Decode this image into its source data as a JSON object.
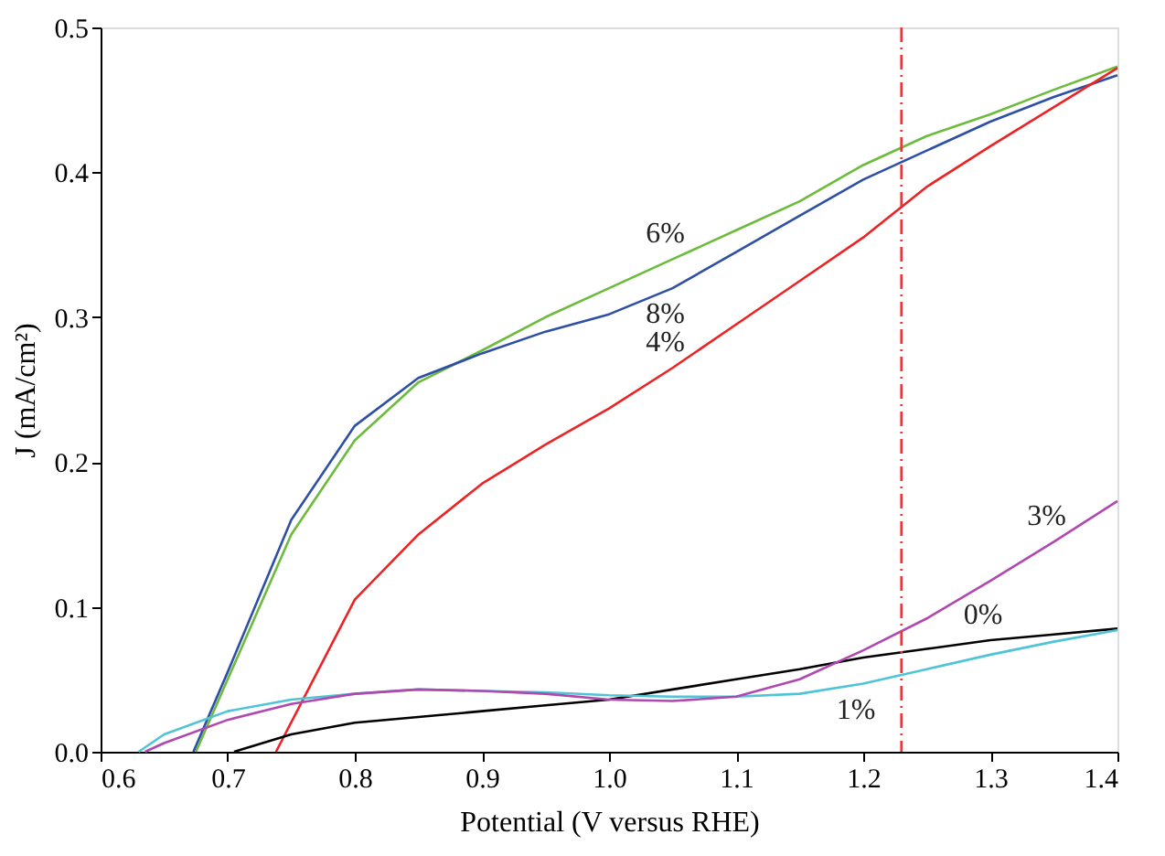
{
  "chart_data": {
    "type": "line",
    "xlabel": "Potential (V versus RHE)",
    "ylabel": "J (mA/cm²)",
    "xlim": [
      0.6,
      1.4
    ],
    "ylim": [
      0,
      0.5
    ],
    "xticks": [
      0.6,
      0.7,
      0.8,
      0.9,
      {
        "value": 1.0,
        "label": "1.0"
      },
      1.1,
      1.2,
      1.3,
      1.4
    ],
    "yticks": [
      {
        "value": 0,
        "label": "0.0"
      },
      0.1,
      0.2,
      0.3,
      0.4,
      0.5
    ],
    "grid": false,
    "legend": false,
    "marker": "none",
    "line_style": "solid",
    "series": [
      {
        "color": "#6dbb3c",
        "x": [
          0.675,
          0.7,
          0.75,
          0.8,
          0.85,
          0.9,
          0.95,
          1.0,
          1.05,
          1.1,
          1.15,
          1.2,
          1.25,
          1.3,
          1.35,
          1.4
        ],
        "values": [
          0,
          0.05,
          0.15,
          0.215,
          0.255,
          0.277,
          0.3,
          0.32,
          0.34,
          0.36,
          0.38,
          0.405,
          0.425,
          0.44,
          0.457,
          0.473
        ]
      },
      {
        "color": "#2e4fa6",
        "x": [
          0.673,
          0.7,
          0.75,
          0.8,
          0.85,
          0.9,
          0.95,
          1.0,
          1.05,
          1.1,
          1.15,
          1.2,
          1.25,
          1.3,
          1.35,
          1.4
        ],
        "values": [
          0,
          0.055,
          0.16,
          0.225,
          0.258,
          0.275,
          0.29,
          0.302,
          0.32,
          0.345,
          0.37,
          0.395,
          0.415,
          0.435,
          0.452,
          0.467
        ]
      },
      {
        "color": "#ee2222",
        "x": [
          0.738,
          0.8,
          0.85,
          0.9,
          0.95,
          1.0,
          1.05,
          1.1,
          1.15,
          1.2,
          1.25,
          1.3,
          1.35,
          1.4
        ],
        "values": [
          0,
          0.105,
          0.15,
          0.185,
          0.212,
          0.237,
          0.265,
          0.295,
          0.325,
          0.355,
          0.39,
          0.418,
          0.445,
          0.472
        ]
      },
      {
        "color": "#000000",
        "x": [
          0.705,
          0.75,
          0.8,
          0.85,
          0.9,
          0.95,
          1.0,
          1.05,
          1.1,
          1.15,
          1.2,
          1.25,
          1.3,
          1.35,
          1.4
        ],
        "values": [
          0,
          0.012,
          0.02,
          0.024,
          0.028,
          0.032,
          0.036,
          0.043,
          0.05,
          0.057,
          0.065,
          0.071,
          0.077,
          0.081,
          0.085
        ]
      },
      {
        "color": "#4fc4d6",
        "x": [
          0.63,
          0.65,
          0.7,
          0.75,
          0.8,
          0.85,
          0.9,
          0.95,
          1.0,
          1.05,
          1.1,
          1.15,
          1.2,
          1.25,
          1.3,
          1.35,
          1.4
        ],
        "values": [
          0,
          0.012,
          0.028,
          0.036,
          0.04,
          0.043,
          0.042,
          0.041,
          0.039,
          0.038,
          0.038,
          0.04,
          0.047,
          0.057,
          0.067,
          0.076,
          0.084
        ]
      },
      {
        "color": "#b048b0",
        "x": [
          0.635,
          0.65,
          0.7,
          0.75,
          0.8,
          0.85,
          0.9,
          0.95,
          1.0,
          1.05,
          1.1,
          1.15,
          1.2,
          1.25,
          1.3,
          1.35,
          1.4
        ],
        "values": [
          0,
          0.006,
          0.022,
          0.033,
          0.04,
          0.043,
          0.042,
          0.04,
          0.036,
          0.035,
          0.038,
          0.05,
          0.07,
          0.092,
          0.118,
          0.145,
          0.173
        ]
      }
    ],
    "ref_lines": [
      {
        "axis": "x",
        "value": 1.23,
        "color": "#e8383d",
        "line_style": "dashdot"
      }
    ],
    "annotations": [
      {
        "text": "6%",
        "x": 1.05,
        "y": 0.34
      },
      {
        "text": "8%",
        "x": 1.05,
        "y": 0.32
      },
      {
        "text": "4%",
        "x": 1.05,
        "y": 0.265
      },
      {
        "text": "3%",
        "x": 1.35,
        "y": 0.145
      },
      {
        "text": "0%",
        "x": 1.3,
        "y": 0.077
      },
      {
        "text": "1%",
        "x": 1.2,
        "y": 0.047
      }
    ]
  }
}
